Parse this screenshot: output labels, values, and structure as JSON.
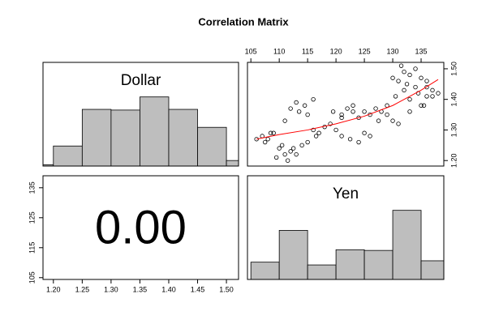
{
  "title": "Correlation Matrix",
  "chart_data": [
    {
      "type": "histogram",
      "label": "Dollar",
      "color": "#bebebe",
      "bins": [
        1.15,
        1.2,
        1.25,
        1.3,
        1.35,
        1.4,
        1.45,
        1.5,
        1.55
      ],
      "values": [
        0.02,
        0.29,
        0.82,
        0.81,
        1.0,
        0.82,
        0.56,
        0.08
      ],
      "xlim": [
        1.182,
        1.521
      ],
      "ylim": [
        0,
        1.5
      ]
    },
    {
      "type": "scatter",
      "color": "#000000",
      "x": [
        106,
        107,
        108,
        109,
        107.5,
        108.5,
        110,
        111,
        109.5,
        110.5,
        112,
        111.5,
        113,
        112.5,
        114,
        115,
        113.5,
        114.5,
        116,
        111,
        112,
        113,
        115,
        116,
        117,
        118,
        116.5,
        119,
        120,
        121,
        119.5,
        122,
        123,
        124,
        121,
        122.5,
        124,
        125,
        126,
        125,
        126,
        127,
        128,
        129,
        127.5,
        130,
        131,
        129,
        130.5,
        132,
        131,
        132,
        133,
        134,
        135,
        136,
        133,
        134.5,
        135.5,
        137,
        131.5,
        132.5,
        134,
        136,
        137,
        138,
        130,
        133,
        135,
        136,
        121,
        123
      ],
      "y": [
        1.27,
        1.28,
        1.27,
        1.29,
        1.26,
        1.29,
        1.24,
        1.22,
        1.21,
        1.25,
        1.23,
        1.2,
        1.22,
        1.24,
        1.25,
        1.26,
        1.36,
        1.38,
        1.4,
        1.33,
        1.37,
        1.39,
        1.35,
        1.3,
        1.29,
        1.31,
        1.28,
        1.32,
        1.3,
        1.35,
        1.36,
        1.37,
        1.36,
        1.34,
        1.28,
        1.27,
        1.26,
        1.29,
        1.28,
        1.36,
        1.35,
        1.37,
        1.36,
        1.38,
        1.33,
        1.33,
        1.32,
        1.35,
        1.41,
        1.43,
        1.46,
        1.49,
        1.48,
        1.5,
        1.47,
        1.44,
        1.4,
        1.42,
        1.38,
        1.41,
        1.51,
        1.45,
        1.44,
        1.46,
        1.43,
        1.42,
        1.47,
        1.36,
        1.38,
        1.41,
        1.34,
        1.38
      ],
      "fit": {
        "color": "#ff0000",
        "x": [
          106,
          110,
          115,
          120,
          125,
          130,
          135,
          138
        ],
        "y": [
          1.27,
          1.285,
          1.3,
          1.32,
          1.345,
          1.38,
          1.43,
          1.465
        ]
      },
      "xlim": [
        104.4,
        139
      ],
      "ylim": [
        1.182,
        1.521
      ],
      "xticks": [
        105,
        110,
        115,
        120,
        125,
        130,
        135
      ],
      "yticks": [
        {
          "value": 1.2,
          "label": "1.20"
        },
        {
          "value": 1.3,
          "label": "1.30"
        },
        {
          "value": 1.4,
          "label": "1.40"
        },
        {
          "value": 1.5,
          "label": "1.50"
        }
      ]
    },
    {
      "type": "text",
      "value": 0,
      "value_label": "0.00",
      "xlim": [
        1.182,
        1.521
      ],
      "ylim": [
        104.4,
        139
      ],
      "xticks": [
        {
          "value": 1.2,
          "label": "1.20"
        },
        {
          "value": 1.25,
          "label": "1.25"
        },
        {
          "value": 1.3,
          "label": "1.30"
        },
        {
          "value": 1.35,
          "label": "1.35"
        },
        {
          "value": 1.4,
          "label": "1.40"
        },
        {
          "value": 1.45,
          "label": "1.45"
        },
        {
          "value": 1.5,
          "label": "1.50"
        }
      ],
      "yticks": [
        105,
        115,
        125,
        135
      ]
    },
    {
      "type": "histogram",
      "label": "Yen",
      "color": "#bebebe",
      "bins": [
        105,
        110,
        115,
        120,
        125,
        130,
        135,
        140
      ],
      "values": [
        0.25,
        0.71,
        0.21,
        0.43,
        0.42,
        1.0,
        0.27
      ],
      "xlim": [
        104.4,
        139
      ],
      "ylim": [
        0,
        1.5
      ]
    }
  ]
}
